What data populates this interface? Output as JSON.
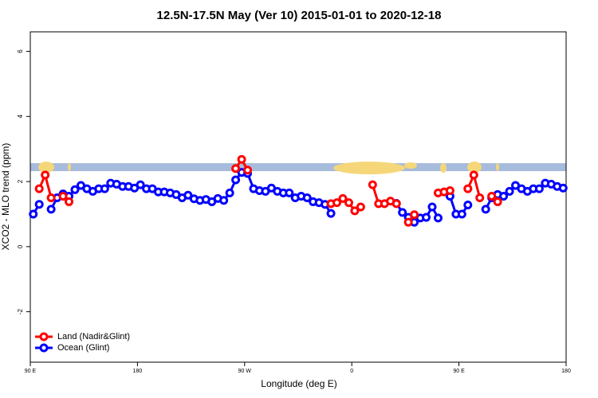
{
  "chart_data": {
    "type": "line",
    "title": "12.5N-17.5N May (Ver 10)   2015-01-01 to 2020-12-18",
    "xlabel": "Longitude (deg E)",
    "ylabel": "XCO2 - MLO trend (ppm)",
    "x": [
      92.5,
      97.5,
      102.5,
      107.5,
      112.5,
      117.5,
      122.5,
      127.5,
      132.5,
      137.5,
      142.5,
      147.5,
      152.5,
      157.5,
      162.5,
      167.5,
      172.5,
      177.5,
      182.5,
      187.5,
      192.5,
      197.5,
      202.5,
      207.5,
      212.5,
      217.5,
      222.5,
      227.5,
      232.5,
      237.5,
      242.5,
      247.5,
      252.5,
      257.5,
      262.5,
      267.5,
      272.5,
      277.5,
      282.5,
      287.5,
      292.5,
      297.5,
      302.5,
      307.5,
      312.5,
      317.5,
      322.5,
      327.5,
      332.5,
      337.5,
      342.5,
      347.5,
      352.5,
      357.5,
      362.5,
      367.5,
      372.5,
      377.5,
      382.5,
      387.5,
      392.5,
      397.5,
      402.5,
      407.5,
      412.5,
      417.5,
      422.5,
      427.5,
      432.5,
      437.5,
      442.5,
      447.5,
      452.5,
      457.5,
      462.5,
      467.5,
      472.5,
      477.5,
      482.5,
      487.5,
      492.5,
      497.5,
      502.5,
      507.5,
      512.5,
      517.5,
      522.5,
      527.5,
      532.5,
      537.5
    ],
    "series": [
      {
        "name": "Ocean (Glint)",
        "color": "#0000ff",
        "values": [
          1.0,
          1.3,
          null,
          1.15,
          1.5,
          1.62,
          1.55,
          1.75,
          1.88,
          1.78,
          1.7,
          1.78,
          1.78,
          1.95,
          1.92,
          1.85,
          1.85,
          1.8,
          1.9,
          1.78,
          1.78,
          1.68,
          1.68,
          1.65,
          1.6,
          1.5,
          1.58,
          1.47,
          1.42,
          1.45,
          1.38,
          1.48,
          1.42,
          1.65,
          2.05,
          2.28,
          2.25,
          1.78,
          1.72,
          1.7,
          1.8,
          1.7,
          1.65,
          1.65,
          1.5,
          1.55,
          1.5,
          1.38,
          1.35,
          1.3,
          1.02,
          null,
          null,
          null,
          null,
          null,
          null,
          null,
          null,
          null,
          null,
          1.33,
          1.05,
          0.9,
          0.75,
          0.88,
          0.9,
          1.22,
          0.88,
          null,
          1.55,
          1.0,
          1.0,
          1.28,
          null,
          null,
          1.15,
          1.5,
          1.6,
          1.55,
          1.7,
          1.88,
          1.78,
          1.7,
          1.78,
          1.78,
          1.95,
          1.92,
          1.85,
          1.8
        ]
      },
      {
        "name": "Land (Nadir&Glint)",
        "color": "#ff0000",
        "values": [
          null,
          1.78,
          2.2,
          1.5,
          null,
          1.55,
          1.38,
          null,
          null,
          null,
          null,
          null,
          null,
          null,
          null,
          null,
          null,
          null,
          null,
          null,
          null,
          null,
          null,
          null,
          null,
          null,
          null,
          null,
          null,
          null,
          null,
          null,
          null,
          null,
          2.4,
          2.68,
          2.35,
          null,
          null,
          null,
          null,
          null,
          null,
          null,
          null,
          null,
          null,
          null,
          null,
          null,
          1.32,
          1.35,
          1.48,
          1.35,
          1.1,
          1.22,
          null,
          1.9,
          1.32,
          1.32,
          1.4,
          1.32,
          null,
          0.75,
          0.98,
          null,
          null,
          null,
          1.65,
          1.68,
          1.72,
          null,
          null,
          1.78,
          2.2,
          1.5,
          null,
          1.55,
          1.38,
          null,
          null,
          null,
          null,
          null,
          null,
          null,
          null,
          null,
          null,
          null
        ]
      }
    ],
    "legend_order": [
      1,
      0
    ],
    "xlim": [
      90,
      540
    ],
    "xticks": [
      {
        "value": 90,
        "label": "90 E"
      },
      180,
      {
        "value": 270,
        "label": "90 W"
      },
      {
        "value": 360,
        "label": "0"
      },
      {
        "value": 450,
        "label": "90 E"
      },
      {
        "value": 540,
        "label": "180"
      }
    ],
    "ylim": [
      -3.55,
      6.6
    ],
    "yticks": [
      -2,
      0,
      2,
      4,
      6
    ],
    "legend": "bottom-left"
  }
}
